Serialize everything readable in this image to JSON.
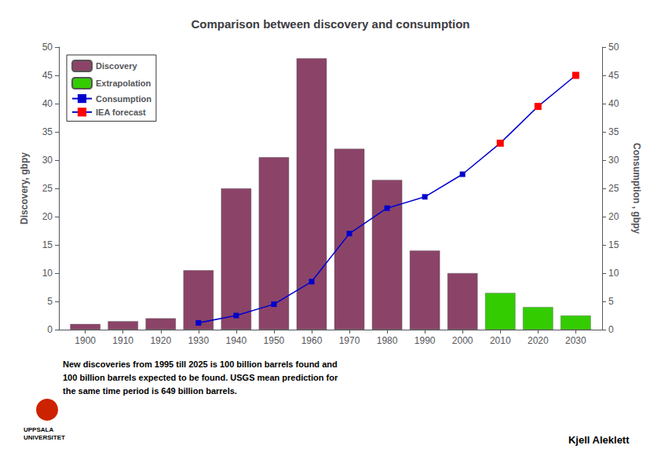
{
  "chart_data": {
    "type": "bar",
    "title": "Comparison between discovery and consumption",
    "x": [
      1900,
      1910,
      1920,
      1930,
      1940,
      1950,
      1960,
      1970,
      1980,
      1990,
      2000,
      2010,
      2020,
      2030
    ],
    "xlim": [
      1893,
      2037
    ],
    "xticks": [
      1900,
      1910,
      1920,
      1930,
      1940,
      1950,
      1960,
      1970,
      1980,
      1990,
      2000,
      2010,
      2020,
      2030
    ],
    "ylim": [
      0,
      50
    ],
    "yticks": [
      0,
      5,
      10,
      15,
      20,
      25,
      30,
      35,
      40,
      45,
      50
    ],
    "y2lim": [
      0,
      50
    ],
    "y2ticks": [
      0,
      5,
      10,
      15,
      20,
      25,
      30,
      35,
      40,
      45,
      50
    ],
    "ylabel": "Discovery, gbpy",
    "y2label": "Consumption , gbpy",
    "grid": false,
    "legend": "upper left",
    "series": [
      {
        "name": "Discovery",
        "type": "bar",
        "color": "#8B4468",
        "values": [
          1,
          1.5,
          2,
          10.5,
          25,
          30.5,
          48,
          32,
          26.5,
          14,
          10,
          0,
          0,
          0
        ]
      },
      {
        "name": "Extrapolation",
        "type": "bar",
        "color": "#33CC00",
        "values": [
          0,
          0,
          0,
          0,
          0,
          0,
          0,
          0,
          0,
          0,
          0,
          6.5,
          4,
          2.5
        ]
      },
      {
        "name": "Consumption",
        "type": "line",
        "color": "#0000CC",
        "marker": "square",
        "axis": "y2",
        "x": [
          1930,
          1940,
          1950,
          1960,
          1970,
          1980,
          1990,
          2000
        ],
        "values": [
          1.2,
          2.5,
          4.5,
          8.5,
          17,
          21.5,
          23.5,
          27.5
        ]
      },
      {
        "name": "IEA forecast",
        "type": "line",
        "color": "#FF0000",
        "marker": "square",
        "axis": "y2",
        "x": [
          2010,
          2020,
          2030
        ],
        "values": [
          33,
          39.5,
          45
        ]
      }
    ],
    "annotations": [
      "New discoveries from 1995 till 2025 is 100 billion barrels found and\n100 billion barrels expected to be found. USGS mean prediction for\nthe same time period is 649 billion barrels.",
      "Kjell Aleklett",
      "UPPSALA\nUNIVERSITET"
    ]
  }
}
